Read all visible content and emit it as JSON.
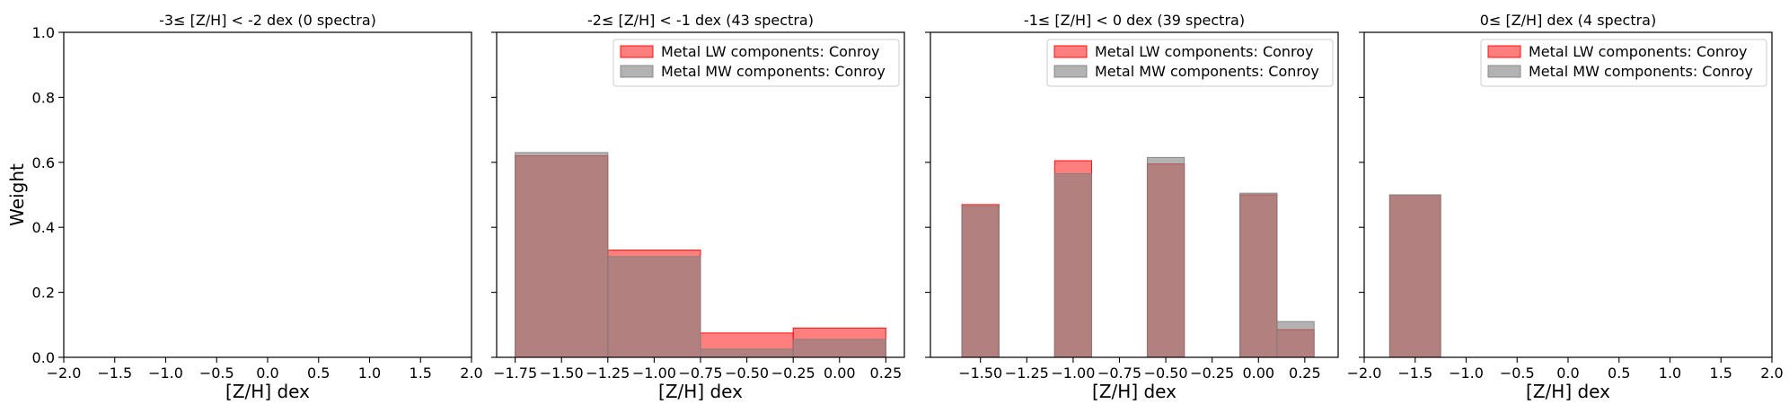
{
  "chart_data": [
    {
      "type": "bar",
      "title": "-3≤  [Z/H] < -2 dex (0 spectra)",
      "xlabel": "[Z/H] dex",
      "ylabel": "Weight",
      "xlim": [
        -2.0,
        2.0
      ],
      "ylim": [
        0.0,
        1.0
      ],
      "xticks": [
        "−2.0",
        "−1.5",
        "−1.0",
        "−0.5",
        "0.0",
        "0.5",
        "1.0",
        "1.5",
        "2.0"
      ],
      "xtick_values": [
        -2.0,
        -1.5,
        -1.0,
        -0.5,
        0.0,
        0.5,
        1.0,
        1.5,
        2.0
      ],
      "yticks": [
        "0.0",
        "0.2",
        "0.4",
        "0.6",
        "0.8",
        "1.0"
      ],
      "ytick_values": [
        0.0,
        0.2,
        0.4,
        0.6,
        0.8,
        1.0
      ],
      "show_ytick_labels": true,
      "series": [],
      "legend": false
    },
    {
      "type": "bar",
      "title": "-2≤  [Z/H] < -1 dex (43 spectra)",
      "xlabel": "[Z/H] dex",
      "ylabel": "",
      "xlim": [
        -1.85,
        0.35
      ],
      "ylim": [
        0.0,
        1.0
      ],
      "xticks": [
        "−1.75",
        "−1.50",
        "−1.25",
        "−1.00",
        "−0.75",
        "−0.50",
        "−0.25",
        "0.00",
        "0.25"
      ],
      "xtick_values": [
        -1.75,
        -1.5,
        -1.25,
        -1.0,
        -0.75,
        -0.5,
        -0.25,
        0.0,
        0.25
      ],
      "yticks": [
        "0.0",
        "0.2",
        "0.4",
        "0.6",
        "0.8",
        "1.0"
      ],
      "ytick_values": [
        0.0,
        0.2,
        0.4,
        0.6,
        0.8,
        1.0
      ],
      "show_ytick_labels": false,
      "legend": true,
      "legend_position": "top-right",
      "series": [
        {
          "name": "Metal LW components: Conroy",
          "color": "#ff0000",
          "bins": [
            [
              -1.75,
              -1.25,
              0.62
            ],
            [
              -1.25,
              -0.75,
              0.33
            ],
            [
              -0.75,
              -0.25,
              0.075
            ],
            [
              -0.25,
              0.25,
              0.09
            ]
          ]
        },
        {
          "name": "Metal MW components: Conroy",
          "color": "#808080",
          "bins": [
            [
              -1.75,
              -1.25,
              0.63
            ],
            [
              -1.25,
              -0.75,
              0.31
            ],
            [
              -0.75,
              -0.25,
              0.025
            ],
            [
              -0.25,
              0.25,
              0.055
            ]
          ]
        }
      ]
    },
    {
      "type": "bar",
      "title": "-1≤  [Z/H] < 0 dex (39 spectra)",
      "xlabel": "[Z/H] dex",
      "ylabel": "",
      "xlim": [
        -1.77,
        0.43
      ],
      "ylim": [
        0.0,
        1.0
      ],
      "xticks": [
        "−1.50",
        "−1.25",
        "−1.00",
        "−0.75",
        "−0.50",
        "−0.25",
        "0.00",
        "0.25"
      ],
      "xtick_values": [
        -1.5,
        -1.25,
        -1.0,
        -0.75,
        -0.5,
        -0.25,
        0.0,
        0.25
      ],
      "yticks": [
        "0.0",
        "0.2",
        "0.4",
        "0.6",
        "0.8",
        "1.0"
      ],
      "ytick_values": [
        0.0,
        0.2,
        0.4,
        0.6,
        0.8,
        1.0
      ],
      "show_ytick_labels": false,
      "legend": true,
      "legend_position": "top-right",
      "series": [
        {
          "name": "Metal LW components: Conroy",
          "color": "#ff0000",
          "bins": [
            [
              -1.6,
              -1.4,
              0.47
            ],
            [
              -1.1,
              -0.9,
              0.605
            ],
            [
              -0.6,
              -0.4,
              0.595
            ],
            [
              -0.1,
              0.1,
              0.5
            ],
            [
              0.1,
              0.3,
              0.085
            ]
          ]
        },
        {
          "name": "Metal MW components: Conroy",
          "color": "#808080",
          "bins": [
            [
              -1.6,
              -1.4,
              0.465
            ],
            [
              -1.1,
              -0.9,
              0.565
            ],
            [
              -0.6,
              -0.4,
              0.615
            ],
            [
              -0.1,
              0.1,
              0.505
            ],
            [
              0.1,
              0.3,
              0.11
            ]
          ]
        }
      ]
    },
    {
      "type": "bar",
      "title": "0≤  [Z/H] dex (4 spectra)",
      "xlabel": "[Z/H] dex",
      "ylabel": "",
      "xlim": [
        -2.0,
        2.0
      ],
      "ylim": [
        0.0,
        1.0
      ],
      "xticks": [
        "−2.0",
        "−1.5",
        "−1.0",
        "−0.5",
        "0.0",
        "0.5",
        "1.0",
        "1.5",
        "2.0"
      ],
      "xtick_values": [
        -2.0,
        -1.5,
        -1.0,
        -0.5,
        0.0,
        0.5,
        1.0,
        1.5,
        2.0
      ],
      "yticks": [
        "0.0",
        "0.2",
        "0.4",
        "0.6",
        "0.8",
        "1.0"
      ],
      "ytick_values": [
        0.0,
        0.2,
        0.4,
        0.6,
        0.8,
        1.0
      ],
      "show_ytick_labels": false,
      "legend": true,
      "legend_position": "top-right",
      "series": [
        {
          "name": "Metal LW components: Conroy",
          "color": "#ff0000",
          "bins": [
            [
              -1.75,
              -1.25,
              0.5
            ]
          ]
        },
        {
          "name": "Metal MW components: Conroy",
          "color": "#808080",
          "bins": [
            [
              -1.75,
              -1.25,
              0.5
            ]
          ]
        }
      ]
    }
  ]
}
